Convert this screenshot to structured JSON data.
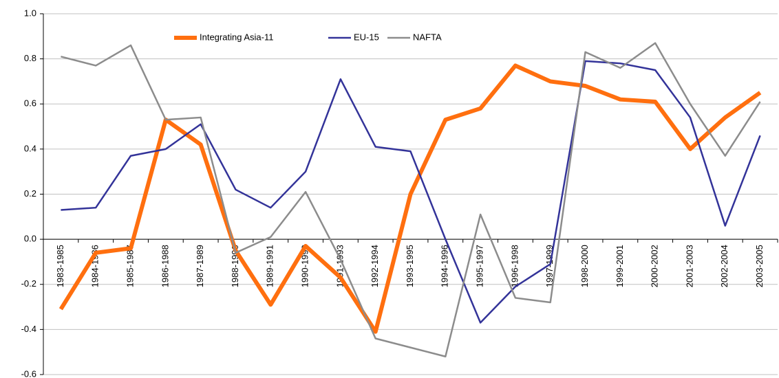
{
  "chart_data": {
    "type": "line",
    "categories": [
      "1983-1985",
      "1984-1986",
      "1985-1987",
      "1986-1988",
      "1987-1989",
      "1988-1990",
      "1989-1991",
      "1990-1992",
      "1991-1993",
      "1992-1994",
      "1993-1995",
      "1994-1996",
      "1995-1997",
      "1996-1998",
      "1997-1999",
      "1998-2000",
      "1999-2001",
      "2000-2002",
      "2001-2003",
      "2002-2004",
      "2003-2005"
    ],
    "series": [
      {
        "name": "Integrating Asia-11",
        "color": "#ff6f0f",
        "line_width": 6,
        "values": [
          -0.31,
          -0.06,
          -0.04,
          0.53,
          0.42,
          -0.05,
          -0.29,
          -0.03,
          -0.17,
          -0.41,
          0.2,
          0.53,
          0.58,
          0.77,
          0.7,
          0.68,
          0.62,
          0.61,
          0.4,
          0.54,
          0.65
        ]
      },
      {
        "name": "EU-15",
        "color": "#333399",
        "line_width": 2.5,
        "values": [
          0.13,
          0.14,
          0.37,
          0.4,
          0.51,
          0.22,
          0.14,
          0.3,
          0.71,
          0.41,
          0.39,
          0.0,
          -0.37,
          -0.21,
          -0.11,
          0.79,
          0.78,
          0.75,
          0.54,
          0.06,
          0.46
        ]
      },
      {
        "name": "NAFTA",
        "color": "#8c8c8c",
        "line_width": 2.5,
        "values": [
          0.81,
          0.77,
          0.86,
          0.53,
          0.54,
          -0.06,
          0.01,
          0.21,
          -0.09,
          -0.44,
          -0.48,
          -0.52,
          0.11,
          -0.26,
          -0.28,
          0.83,
          0.76,
          0.87,
          0.6,
          0.37,
          0.61
        ]
      }
    ],
    "ylim": [
      -0.6,
      1.0
    ],
    "yticks": [
      {
        "value": 1.0,
        "label": "1.0"
      },
      0.8,
      0.6,
      0.4,
      0.2,
      {
        "value": 0.0,
        "label": "0.0"
      },
      -0.2,
      -0.4,
      -0.6
    ],
    "grid": true,
    "legend": "top"
  }
}
